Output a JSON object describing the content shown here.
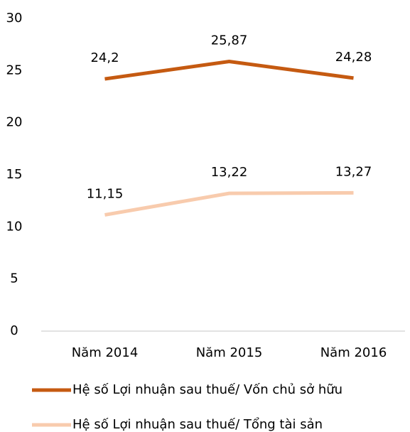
{
  "chart_data": {
    "type": "line",
    "categories": [
      "Năm 2014",
      "Năm 2015",
      "Năm 2016"
    ],
    "series": [
      {
        "name": "Hệ số Lợi nhuận sau thuế/ Vốn chủ sở hữu",
        "color": "#c55a11",
        "values": [
          24.2,
          25.87,
          24.28
        ],
        "value_labels": [
          "24,2",
          "25,87",
          "24,28"
        ]
      },
      {
        "name": "Hệ số Lợi nhuận sau thuế/ Tổng tài sản",
        "color": "#f8cbad",
        "values": [
          11.15,
          13.22,
          13.27
        ],
        "value_labels": [
          "11,15",
          "13,22",
          "13,27"
        ]
      }
    ],
    "ylim": [
      0,
      30
    ],
    "yticks": [
      0,
      5,
      10,
      15,
      20,
      25,
      30
    ],
    "grid": false,
    "legend": "bottom"
  }
}
